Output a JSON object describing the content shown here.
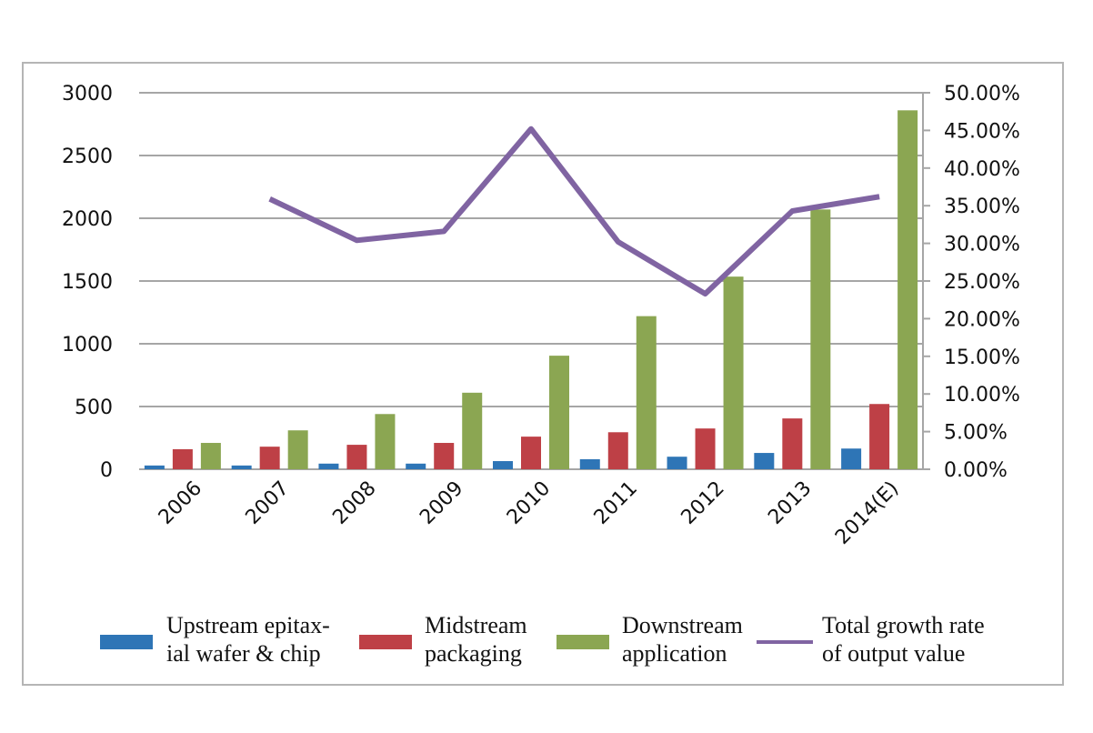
{
  "chart_data": {
    "type": "bar",
    "categories": [
      "2006",
      "2007",
      "2008",
      "2009",
      "2010",
      "2011",
      "2012",
      "2013",
      "2014(E)"
    ],
    "series": [
      {
        "name": "Upstream epitax-ial wafer & chip",
        "legend_lines": [
          "Upstream epitax-",
          "ial wafer & chip"
        ],
        "type": "bar",
        "axis": "left",
        "color": "#2e75b6",
        "values": [
          30,
          30,
          45,
          45,
          65,
          80,
          100,
          130,
          165
        ]
      },
      {
        "name": "Midstream packaging",
        "legend_lines": [
          "Midstream",
          "packaging"
        ],
        "type": "bar",
        "axis": "left",
        "color": "#be4046",
        "values": [
          160,
          180,
          195,
          210,
          260,
          295,
          325,
          405,
          520
        ]
      },
      {
        "name": "Downstream application",
        "legend_lines": [
          "Downstream",
          "application"
        ],
        "type": "bar",
        "axis": "left",
        "color": "#8ba652",
        "values": [
          210,
          310,
          440,
          610,
          905,
          1220,
          1535,
          2070,
          2860
        ]
      },
      {
        "name": "Total growth rate of output value",
        "legend_lines": [
          "Total growth rate",
          "of output value"
        ],
        "type": "line",
        "axis": "right",
        "color": "#8064a2",
        "values": [
          null,
          35.9,
          30.4,
          31.6,
          45.2,
          30.2,
          23.3,
          34.3,
          36.2
        ]
      }
    ],
    "y_left": {
      "range": [
        0,
        3000
      ],
      "ticks": [
        "0",
        "500",
        "1000",
        "1500",
        "2000",
        "2500",
        "3000"
      ]
    },
    "y_right": {
      "range": [
        0,
        50
      ],
      "ticks": [
        "0.00%",
        "5.00%",
        "10.00%",
        "15.00%",
        "20.00%",
        "25.00%",
        "30.00%",
        "35.00%",
        "40.00%",
        "45.00%",
        "50.00%"
      ]
    },
    "grid": true,
    "legend_position": "bottom"
  }
}
